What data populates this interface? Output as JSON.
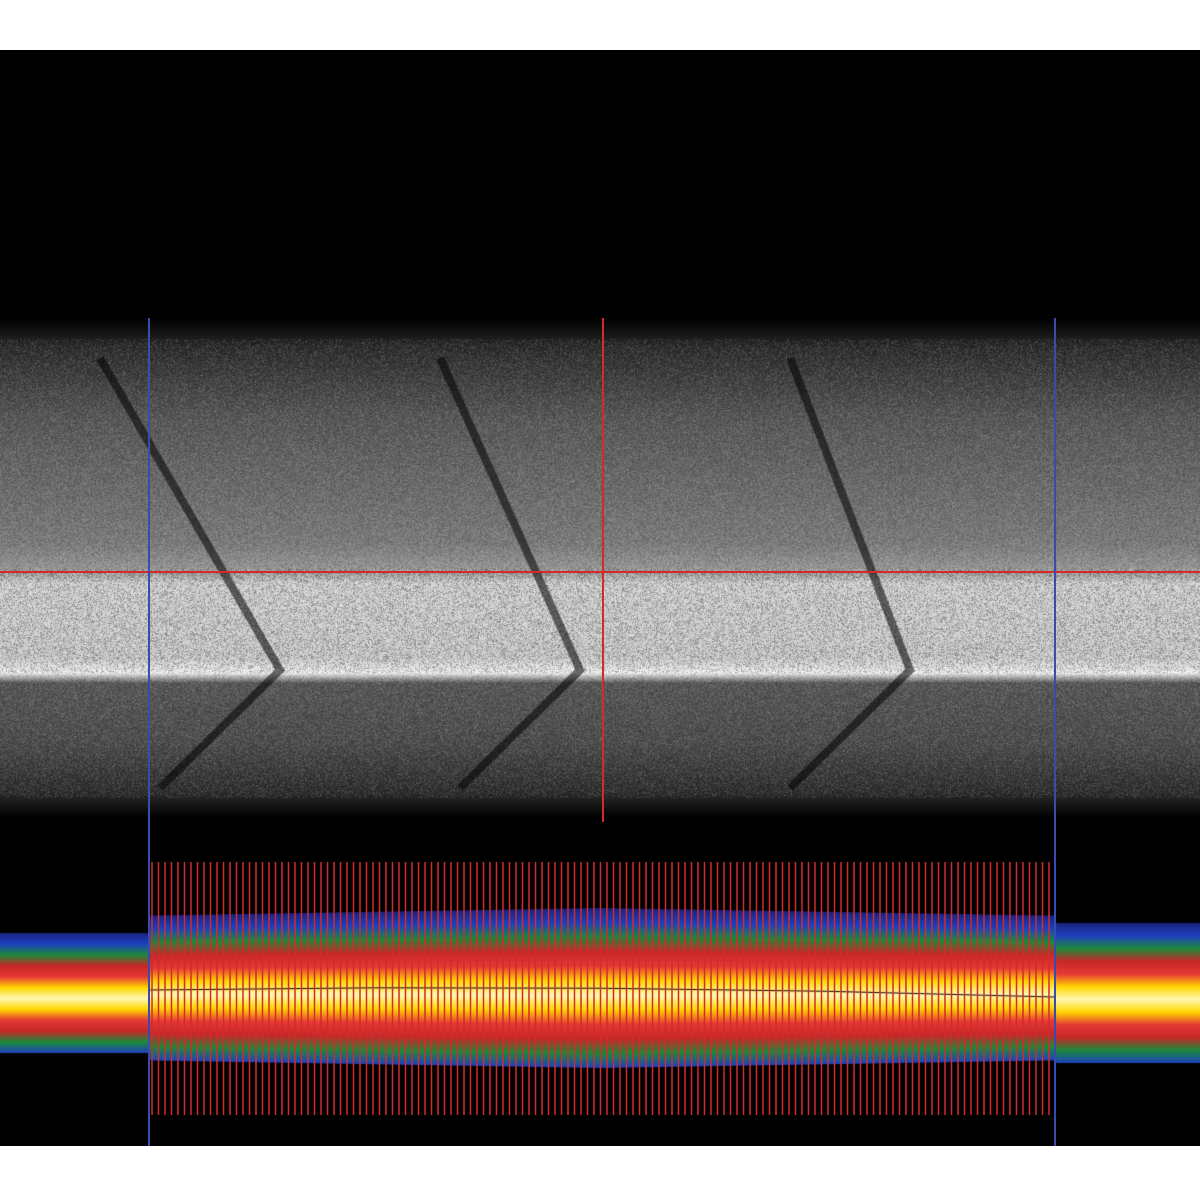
{
  "colors": {
    "crosshair": "#d42a2a",
    "boundary": "#3a4bb0",
    "heatmap_stops": [
      "#1a237e",
      "#1e40c0",
      "#1b8a3a",
      "#c62828",
      "#e53935",
      "#ffd600",
      "#fff8b0"
    ]
  }
}
